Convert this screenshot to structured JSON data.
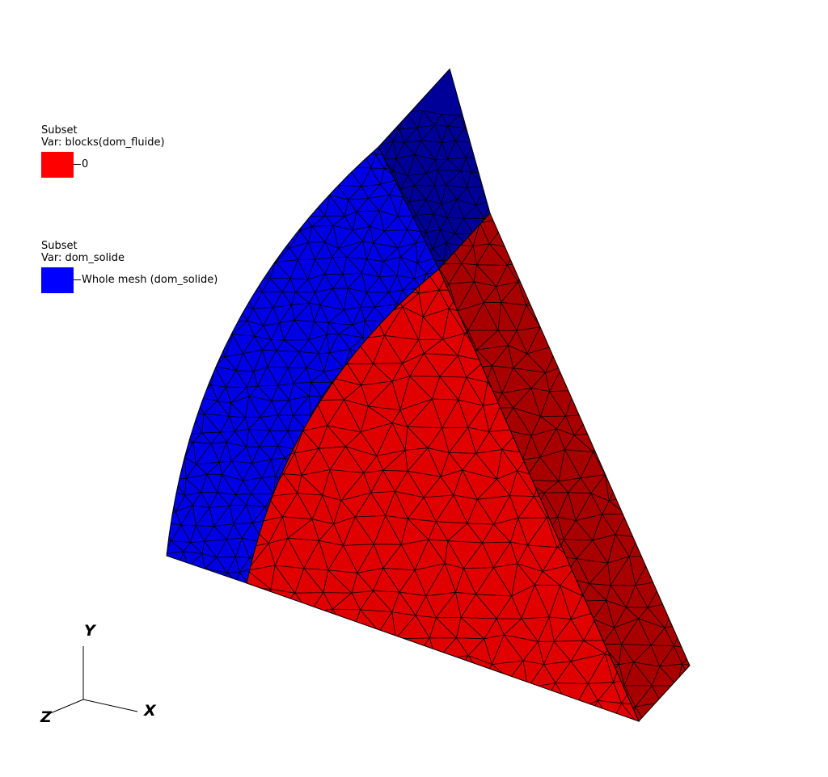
{
  "legends": [
    {
      "title": "Subset",
      "var": "Var: blocks(dom_fluide)",
      "entries": [
        {
          "label": "0",
          "color": "#ff0000"
        }
      ]
    },
    {
      "title": "Subset",
      "var": "Var: dom_solide",
      "entries": [
        {
          "label": "Whole mesh (dom_solide)",
          "color": "#0000ff"
        }
      ]
    }
  ],
  "triad": {
    "x": "X",
    "y": "Y",
    "z": "Z"
  },
  "colors": {
    "fluid_face": "#e00000",
    "fluid_side": "#a80000",
    "solid_face": "#0000e6",
    "solid_side": "#000099",
    "mesh_lines": "#000000"
  }
}
